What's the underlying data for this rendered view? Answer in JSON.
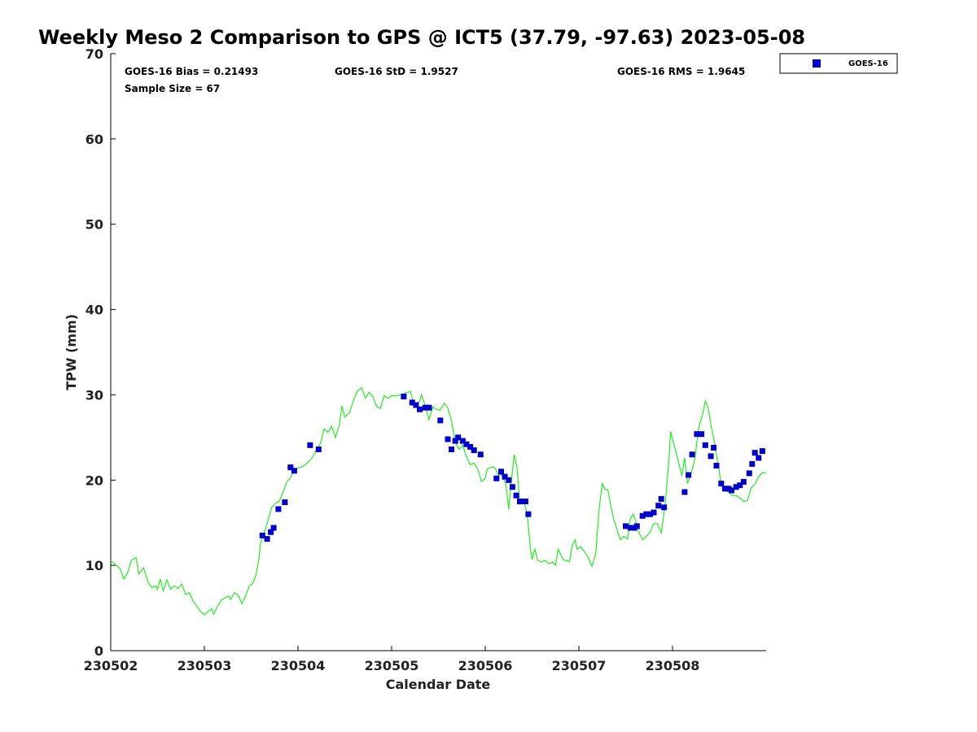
{
  "chart_data": {
    "type": "scatter",
    "title": "Weekly Meso 2 Comparison to GPS @ ICT5 (37.79, -97.63) 2023-05-08",
    "xlabel": "Calendar Date",
    "ylabel": "TPW (mm)",
    "x_tick_labels": [
      "230502",
      "230503",
      "230504",
      "230505",
      "230506",
      "230507",
      "230508"
    ],
    "xlim_days": [
      0,
      7
    ],
    "ylim": [
      0,
      70
    ],
    "y_ticks": [
      0,
      10,
      20,
      30,
      40,
      50,
      60,
      70
    ],
    "grid": false,
    "legend_position": "top-right",
    "stats": {
      "bias": "GOES-16 Bias = 0.21493",
      "std": "GOES-16 StD = 1.9527",
      "rms": "GOES-16 RMS = 1.9645",
      "sample": "Sample Size = 67"
    },
    "series": [
      {
        "name": "GOES-16",
        "kind": "scatter",
        "color": "#0000cc",
        "marker": "square",
        "points": [
          [
            1.62,
            13.5
          ],
          [
            1.67,
            13.1
          ],
          [
            1.71,
            13.9
          ],
          [
            1.74,
            14.4
          ],
          [
            1.79,
            16.6
          ],
          [
            1.86,
            17.4
          ],
          [
            1.92,
            21.5
          ],
          [
            1.96,
            21.1
          ],
          [
            2.13,
            24.1
          ],
          [
            2.22,
            23.6
          ],
          [
            3.13,
            29.8
          ],
          [
            3.22,
            29.1
          ],
          [
            3.26,
            28.8
          ],
          [
            3.3,
            28.3
          ],
          [
            3.36,
            28.5
          ],
          [
            3.4,
            28.5
          ],
          [
            3.52,
            27.0
          ],
          [
            3.6,
            24.8
          ],
          [
            3.64,
            23.6
          ],
          [
            3.68,
            24.6
          ],
          [
            3.71,
            25.0
          ],
          [
            3.76,
            24.6
          ],
          [
            3.8,
            24.2
          ],
          [
            3.84,
            23.9
          ],
          [
            3.88,
            23.5
          ],
          [
            3.95,
            23.0
          ],
          [
            4.12,
            20.2
          ],
          [
            4.17,
            21.0
          ],
          [
            4.21,
            20.4
          ],
          [
            4.25,
            20.0
          ],
          [
            4.29,
            19.2
          ],
          [
            4.33,
            18.2
          ],
          [
            4.37,
            17.5
          ],
          [
            4.43,
            17.5
          ],
          [
            4.46,
            16.0
          ],
          [
            5.5,
            14.6
          ],
          [
            5.55,
            14.4
          ],
          [
            5.59,
            14.4
          ],
          [
            5.62,
            14.6
          ],
          [
            5.68,
            15.8
          ],
          [
            5.72,
            16.0
          ],
          [
            5.76,
            16.0
          ],
          [
            5.8,
            16.2
          ],
          [
            5.85,
            17.0
          ],
          [
            5.88,
            17.8
          ],
          [
            5.91,
            16.8
          ],
          [
            6.13,
            18.6
          ],
          [
            6.17,
            20.6
          ],
          [
            6.21,
            23.0
          ],
          [
            6.26,
            25.4
          ],
          [
            6.31,
            25.4
          ],
          [
            6.35,
            24.1
          ],
          [
            6.41,
            22.8
          ],
          [
            6.44,
            23.8
          ],
          [
            6.47,
            21.7
          ],
          [
            6.52,
            19.6
          ],
          [
            6.56,
            19.0
          ],
          [
            6.6,
            19.0
          ],
          [
            6.63,
            18.8
          ],
          [
            6.68,
            19.2
          ],
          [
            6.72,
            19.4
          ],
          [
            6.76,
            19.8
          ],
          [
            6.82,
            20.8
          ],
          [
            6.85,
            21.9
          ],
          [
            6.88,
            23.2
          ],
          [
            6.92,
            22.6
          ],
          [
            6.96,
            23.4
          ]
        ]
      },
      {
        "name": "",
        "kind": "line",
        "color": "#22ee22",
        "points": [
          [
            0.0,
            10.6
          ],
          [
            0.05,
            10.1
          ],
          [
            0.1,
            9.6
          ],
          [
            0.14,
            8.4
          ],
          [
            0.18,
            9.1
          ],
          [
            0.22,
            10.6
          ],
          [
            0.27,
            10.9
          ],
          [
            0.3,
            9.0
          ],
          [
            0.35,
            9.7
          ],
          [
            0.4,
            8.0
          ],
          [
            0.44,
            7.4
          ],
          [
            0.48,
            7.6
          ],
          [
            0.5,
            7.2
          ],
          [
            0.53,
            8.4
          ],
          [
            0.56,
            7.0
          ],
          [
            0.6,
            8.3
          ],
          [
            0.64,
            7.2
          ],
          [
            0.68,
            7.6
          ],
          [
            0.72,
            7.3
          ],
          [
            0.76,
            7.8
          ],
          [
            0.8,
            6.6
          ],
          [
            0.84,
            6.8
          ],
          [
            0.88,
            5.8
          ],
          [
            0.92,
            5.2
          ],
          [
            0.96,
            4.6
          ],
          [
            1.0,
            4.2
          ],
          [
            1.04,
            4.6
          ],
          [
            1.08,
            4.9
          ],
          [
            1.1,
            4.3
          ],
          [
            1.14,
            5.2
          ],
          [
            1.18,
            5.9
          ],
          [
            1.22,
            6.2
          ],
          [
            1.26,
            6.4
          ],
          [
            1.28,
            6.0
          ],
          [
            1.32,
            6.8
          ],
          [
            1.36,
            6.5
          ],
          [
            1.4,
            5.5
          ],
          [
            1.44,
            6.4
          ],
          [
            1.48,
            7.6
          ],
          [
            1.52,
            7.9
          ],
          [
            1.55,
            8.9
          ],
          [
            1.58,
            10.5
          ],
          [
            1.6,
            12.6
          ],
          [
            1.64,
            13.8
          ],
          [
            1.68,
            15.3
          ],
          [
            1.72,
            16.8
          ],
          [
            1.76,
            17.3
          ],
          [
            1.8,
            17.5
          ],
          [
            1.84,
            18.6
          ],
          [
            1.88,
            19.8
          ],
          [
            1.92,
            20.3
          ],
          [
            1.96,
            21.2
          ],
          [
            2.0,
            21.4
          ],
          [
            2.05,
            21.6
          ],
          [
            2.1,
            22.0
          ],
          [
            2.15,
            22.6
          ],
          [
            2.2,
            23.6
          ],
          [
            2.24,
            24.3
          ],
          [
            2.28,
            26.0
          ],
          [
            2.32,
            25.6
          ],
          [
            2.36,
            26.3
          ],
          [
            2.4,
            25.0
          ],
          [
            2.44,
            26.4
          ],
          [
            2.47,
            28.7
          ],
          [
            2.5,
            27.4
          ],
          [
            2.55,
            27.9
          ],
          [
            2.6,
            29.6
          ],
          [
            2.64,
            30.5
          ],
          [
            2.68,
            30.8
          ],
          [
            2.72,
            29.6
          ],
          [
            2.76,
            30.3
          ],
          [
            2.8,
            29.8
          ],
          [
            2.84,
            28.6
          ],
          [
            2.88,
            28.4
          ],
          [
            2.92,
            29.9
          ],
          [
            2.96,
            29.6
          ],
          [
            3.0,
            29.9
          ],
          [
            3.05,
            29.9
          ],
          [
            3.1,
            30.0
          ],
          [
            3.15,
            30.2
          ],
          [
            3.2,
            30.4
          ],
          [
            3.24,
            28.9
          ],
          [
            3.28,
            28.7
          ],
          [
            3.32,
            30.0
          ],
          [
            3.36,
            28.7
          ],
          [
            3.4,
            27.1
          ],
          [
            3.44,
            28.6
          ],
          [
            3.48,
            28.3
          ],
          [
            3.52,
            28.2
          ],
          [
            3.56,
            29.0
          ],
          [
            3.6,
            28.5
          ],
          [
            3.64,
            26.9
          ],
          [
            3.68,
            24.5
          ],
          [
            3.72,
            23.6
          ],
          [
            3.76,
            24.1
          ],
          [
            3.8,
            22.7
          ],
          [
            3.84,
            21.8
          ],
          [
            3.88,
            22.0
          ],
          [
            3.92,
            21.3
          ],
          [
            3.96,
            19.8
          ],
          [
            4.0,
            20.2
          ],
          [
            4.02,
            21.3
          ],
          [
            4.06,
            21.5
          ],
          [
            4.1,
            21.5
          ],
          [
            4.14,
            20.6
          ],
          [
            4.18,
            20.6
          ],
          [
            4.22,
            19.5
          ],
          [
            4.25,
            16.6
          ],
          [
            4.28,
            20.0
          ],
          [
            4.31,
            23.0
          ],
          [
            4.34,
            21.4
          ],
          [
            4.37,
            17.2
          ],
          [
            4.41,
            17.8
          ],
          [
            4.45,
            15.8
          ],
          [
            4.48,
            12.2
          ],
          [
            4.5,
            10.7
          ],
          [
            4.53,
            11.9
          ],
          [
            4.56,
            10.6
          ],
          [
            4.6,
            10.4
          ],
          [
            4.64,
            10.6
          ],
          [
            4.68,
            10.2
          ],
          [
            4.72,
            10.4
          ],
          [
            4.75,
            10.0
          ],
          [
            4.78,
            11.9
          ],
          [
            4.81,
            11.2
          ],
          [
            4.84,
            10.6
          ],
          [
            4.87,
            10.6
          ],
          [
            4.9,
            10.4
          ],
          [
            4.93,
            12.4
          ],
          [
            4.96,
            13.0
          ],
          [
            4.98,
            11.9
          ],
          [
            5.02,
            12.2
          ],
          [
            5.06,
            11.6
          ],
          [
            5.1,
            10.9
          ],
          [
            5.14,
            9.9
          ],
          [
            5.18,
            11.4
          ],
          [
            5.22,
            17.0
          ],
          [
            5.25,
            19.6
          ],
          [
            5.28,
            18.9
          ],
          [
            5.31,
            18.9
          ],
          [
            5.34,
            17.0
          ],
          [
            5.37,
            15.5
          ],
          [
            5.4,
            14.5
          ],
          [
            5.44,
            13.0
          ],
          [
            5.48,
            13.4
          ],
          [
            5.52,
            13.1
          ],
          [
            5.55,
            15.5
          ],
          [
            5.58,
            16.0
          ],
          [
            5.61,
            15.1
          ],
          [
            5.64,
            13.9
          ],
          [
            5.68,
            13.0
          ],
          [
            5.72,
            13.4
          ],
          [
            5.76,
            13.9
          ],
          [
            5.8,
            14.9
          ],
          [
            5.84,
            14.9
          ],
          [
            5.88,
            13.8
          ],
          [
            5.92,
            17.0
          ],
          [
            5.96,
            22.0
          ],
          [
            5.98,
            25.7
          ],
          [
            6.02,
            24.0
          ],
          [
            6.06,
            22.3
          ],
          [
            6.1,
            20.5
          ],
          [
            6.13,
            22.6
          ],
          [
            6.16,
            19.6
          ],
          [
            6.2,
            20.8
          ],
          [
            6.24,
            22.6
          ],
          [
            6.28,
            26.2
          ],
          [
            6.32,
            27.6
          ],
          [
            6.35,
            29.3
          ],
          [
            6.38,
            28.5
          ],
          [
            6.42,
            25.9
          ],
          [
            6.45,
            24.3
          ],
          [
            6.48,
            22.3
          ],
          [
            6.52,
            19.6
          ],
          [
            6.56,
            18.8
          ],
          [
            6.6,
            18.6
          ],
          [
            6.64,
            18.2
          ],
          [
            6.68,
            18.2
          ],
          [
            6.72,
            17.9
          ],
          [
            6.76,
            17.5
          ],
          [
            6.8,
            17.6
          ],
          [
            6.84,
            19.1
          ],
          [
            6.88,
            19.5
          ],
          [
            6.92,
            20.4
          ],
          [
            6.96,
            20.9
          ],
          [
            7.0,
            20.8
          ]
        ]
      }
    ]
  }
}
